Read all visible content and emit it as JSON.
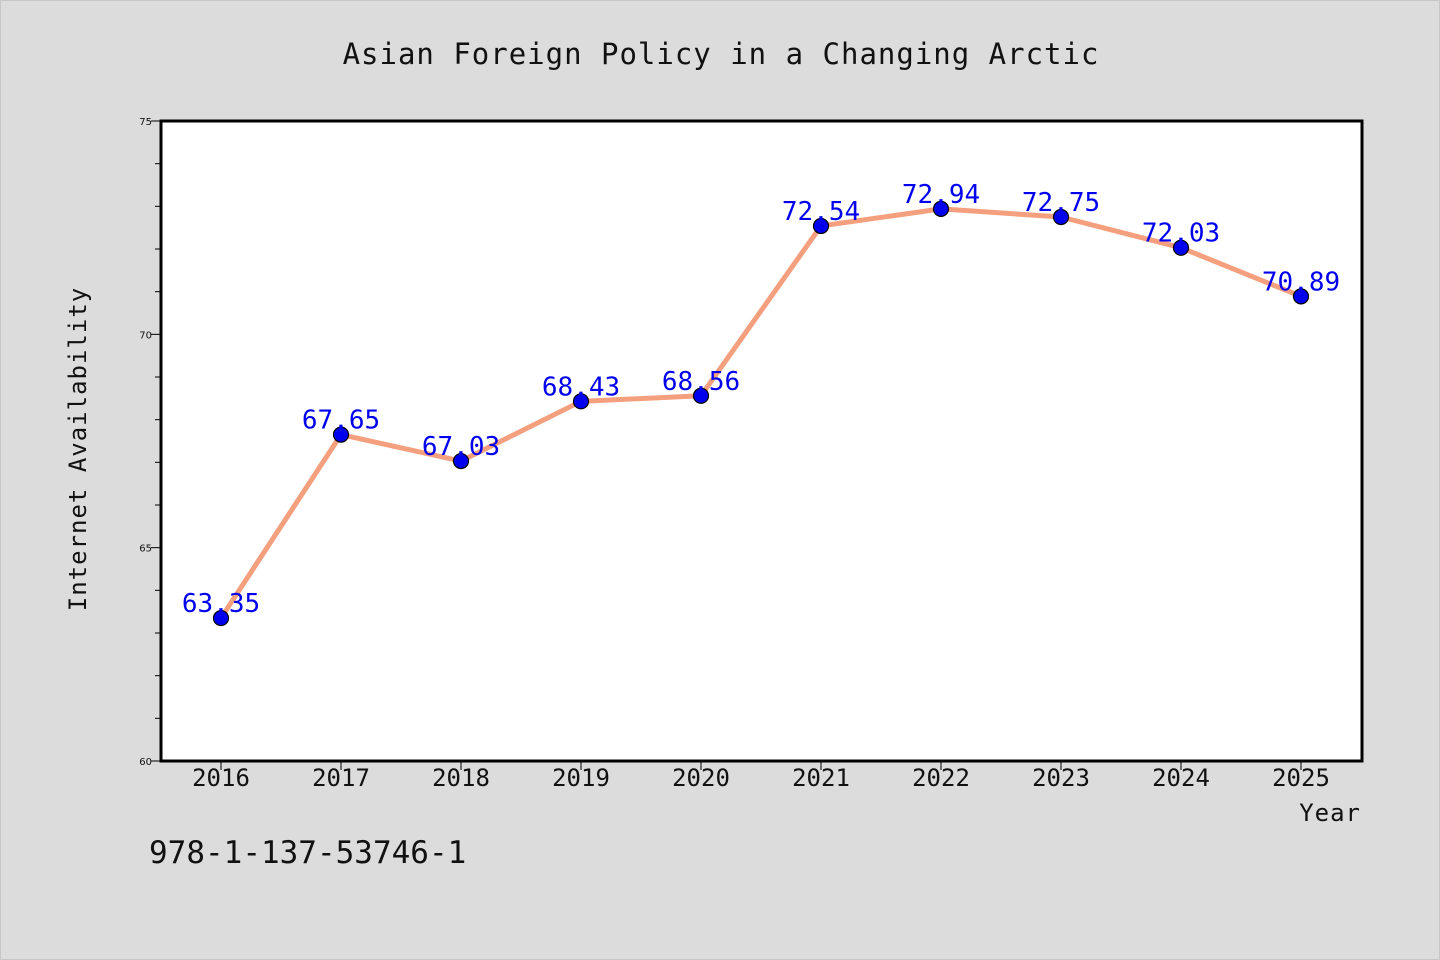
{
  "title": "Asian Foreign Policy in a Changing Arctic",
  "footer_text": "978-1-137-53746-1",
  "colors": {
    "background": "#dcdcdc",
    "plot_background": "#ffffff",
    "line": "#f4a07e",
    "marker": "#0000ee",
    "data_label": "#0000ee"
  },
  "chart_data": {
    "type": "line",
    "title": "Asian Foreign Policy in a Changing Arctic",
    "xlabel": "Year",
    "ylabel": "Internet Availability",
    "categories": [
      "2016",
      "2017",
      "2018",
      "2019",
      "2020",
      "2021",
      "2022",
      "2023",
      "2024",
      "2025"
    ],
    "series": [
      {
        "values": [
          63.35,
          67.65,
          67.03,
          68.43,
          68.56,
          72.54,
          72.94,
          72.75,
          72.03,
          70.89
        ],
        "data_labels": [
          "63.35",
          "67.65",
          "67.03",
          "68.43",
          "68.56",
          "72.54",
          "72.94",
          "72.75",
          "72.03",
          "70.89"
        ]
      }
    ],
    "ylim": [
      60,
      75
    ],
    "yticks": [
      "60",
      "65",
      "70",
      "75"
    ],
    "grid": false,
    "legend": "none"
  }
}
